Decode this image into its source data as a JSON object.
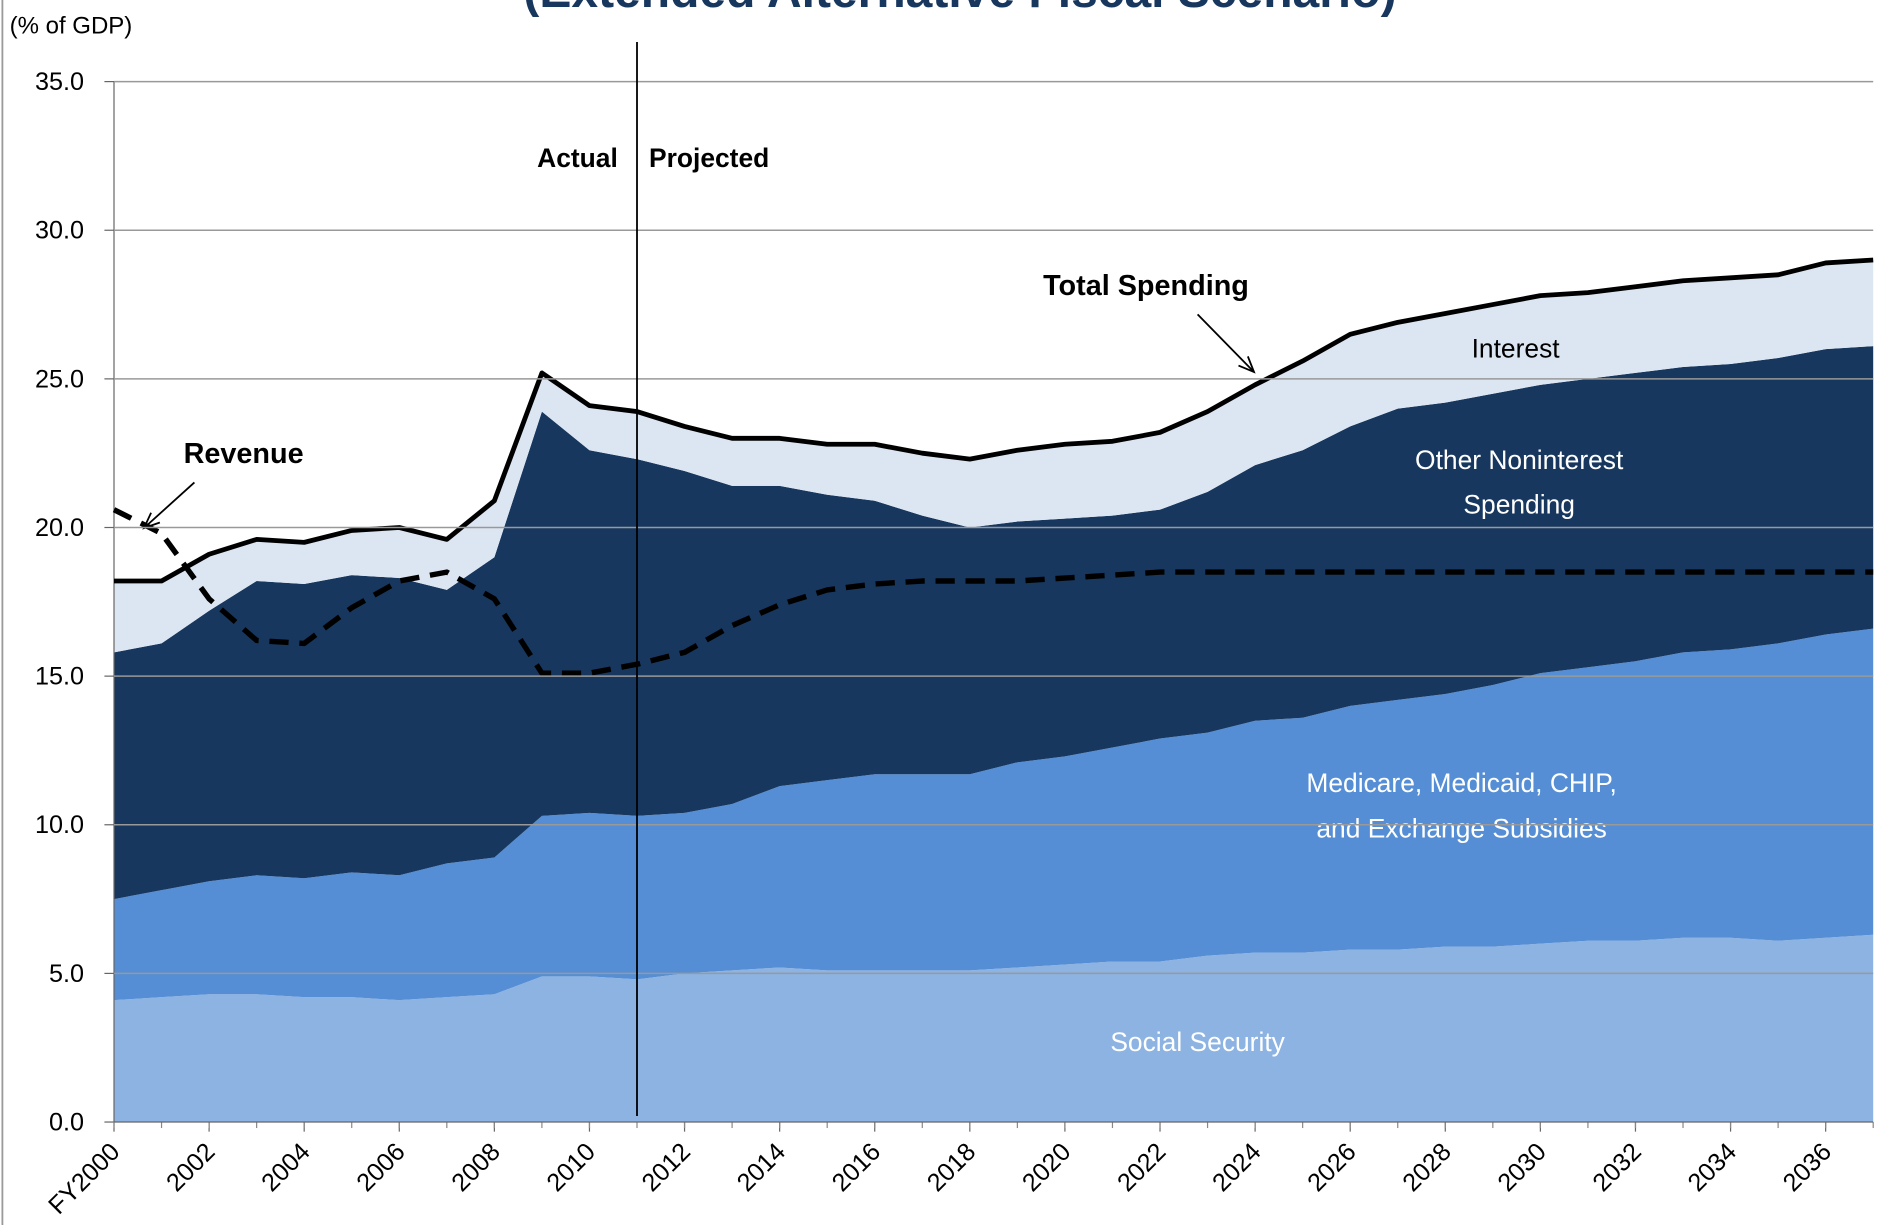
{
  "chart_data": {
    "type": "area",
    "title": "(Extended Alternative Fiscal Scenario)",
    "ylabel": "(% of GDP)",
    "annotations": [
      "Actual",
      "Projected"
    ],
    "divider_x": 2011,
    "xlim": [
      2000,
      2037
    ],
    "xticks": [
      {
        "value": 2000,
        "label": "FY2000"
      },
      2002,
      2004,
      2006,
      2008,
      2010,
      2012,
      2014,
      2016,
      2018,
      2020,
      2022,
      2024,
      2026,
      2028,
      2030,
      2032,
      2034,
      2036
    ],
    "ylim": [
      0,
      35
    ],
    "yticks": [
      {
        "value": 0,
        "label": "0.0"
      },
      {
        "value": 5,
        "label": "5.0"
      },
      {
        "value": 10,
        "label": "10.0"
      },
      {
        "value": 15,
        "label": "15.0"
      },
      {
        "value": 20,
        "label": "20.0"
      },
      {
        "value": 25,
        "label": "25.0"
      },
      {
        "value": 30,
        "label": "30.0"
      },
      {
        "value": 35,
        "label": "35.0"
      }
    ],
    "grid": true,
    "x": [
      2000,
      2001,
      2002,
      2003,
      2004,
      2005,
      2006,
      2007,
      2008,
      2009,
      2010,
      2011,
      2012,
      2013,
      2014,
      2015,
      2016,
      2017,
      2018,
      2019,
      2020,
      2021,
      2022,
      2023,
      2024,
      2025,
      2026,
      2027,
      2028,
      2029,
      2030,
      2031,
      2032,
      2033,
      2034,
      2035,
      2036,
      2037
    ],
    "series": [
      {
        "name": [
          "Social Security"
        ],
        "color": "#8db3e2",
        "kind": "area",
        "values": [
          4.1,
          4.2,
          4.3,
          4.3,
          4.2,
          4.2,
          4.1,
          4.2,
          4.3,
          4.9,
          4.9,
          4.8,
          5.0,
          5.1,
          5.2,
          5.1,
          5.1,
          5.1,
          5.1,
          5.2,
          5.3,
          5.4,
          5.4,
          5.6,
          5.7,
          5.7,
          5.8,
          5.8,
          5.9,
          5.9,
          6.0,
          6.1,
          6.1,
          6.2,
          6.2,
          6.1,
          6.2,
          6.3
        ]
      },
      {
        "name": [
          "Medicare, Medicaid, CHIP,",
          "and Exchange Subsidies"
        ],
        "color": "#558ed5",
        "kind": "area",
        "values": [
          3.4,
          3.6,
          3.8,
          4.0,
          4.0,
          4.2,
          4.2,
          4.5,
          4.6,
          5.4,
          5.5,
          5.5,
          5.4,
          5.6,
          6.1,
          6.4,
          6.6,
          6.6,
          6.6,
          6.9,
          7.0,
          7.2,
          7.5,
          7.5,
          7.8,
          7.9,
          8.2,
          8.4,
          8.5,
          8.8,
          9.1,
          9.2,
          9.4,
          9.6,
          9.7,
          10.0,
          10.2,
          10.3
        ]
      },
      {
        "name": [
          "Other Noninterest",
          "Spending"
        ],
        "color": "#17375e",
        "kind": "area",
        "values": [
          8.3,
          8.3,
          9.1,
          9.9,
          9.9,
          10.0,
          10.0,
          9.2,
          10.1,
          13.6,
          12.2,
          12.0,
          11.5,
          10.7,
          10.1,
          9.6,
          9.2,
          8.7,
          8.3,
          8.1,
          8.0,
          7.8,
          7.7,
          8.1,
          8.6,
          9.0,
          9.4,
          9.8,
          9.8,
          9.8,
          9.7,
          9.7,
          9.7,
          9.6,
          9.6,
          9.6,
          9.6,
          9.5
        ]
      },
      {
        "name": [
          "Interest"
        ],
        "color": "#dce6f2",
        "kind": "area",
        "values": [
          2.4,
          2.1,
          1.9,
          1.4,
          1.4,
          1.5,
          1.7,
          1.7,
          1.9,
          1.3,
          1.5,
          1.6,
          1.5,
          1.6,
          1.6,
          1.7,
          1.9,
          2.1,
          2.3,
          2.4,
          2.5,
          2.5,
          2.6,
          2.7,
          2.7,
          3.0,
          3.1,
          2.9,
          3.0,
          3.0,
          3.0,
          2.9,
          2.9,
          2.9,
          2.9,
          2.8,
          2.9,
          2.9
        ]
      },
      {
        "name": [
          "Total Spending"
        ],
        "color": "#000000",
        "kind": "line",
        "dash": false,
        "values": [
          18.2,
          18.2,
          19.1,
          19.6,
          19.5,
          19.9,
          20.0,
          19.6,
          20.9,
          25.2,
          24.1,
          23.9,
          23.4,
          23.0,
          23.0,
          22.8,
          22.8,
          22.5,
          22.3,
          22.6,
          22.8,
          22.9,
          23.2,
          23.9,
          24.8,
          25.6,
          26.5,
          26.9,
          27.2,
          27.5,
          27.8,
          27.9,
          28.1,
          28.3,
          28.4,
          28.5,
          28.9,
          29.0
        ]
      },
      {
        "name": [
          "Revenue"
        ],
        "color": "#000000",
        "kind": "line",
        "dash": true,
        "values": [
          20.6,
          19.8,
          17.6,
          16.2,
          16.1,
          17.3,
          18.2,
          18.5,
          17.6,
          15.1,
          15.1,
          15.4,
          15.8,
          16.7,
          17.4,
          17.9,
          18.1,
          18.2,
          18.2,
          18.2,
          18.3,
          18.4,
          18.5,
          18.5,
          18.5,
          18.5,
          18.5,
          18.5,
          18.5,
          18.5,
          18.5,
          18.5,
          18.5,
          18.5,
          18.5,
          18.5,
          18.5,
          18.5
        ]
      }
    ]
  }
}
